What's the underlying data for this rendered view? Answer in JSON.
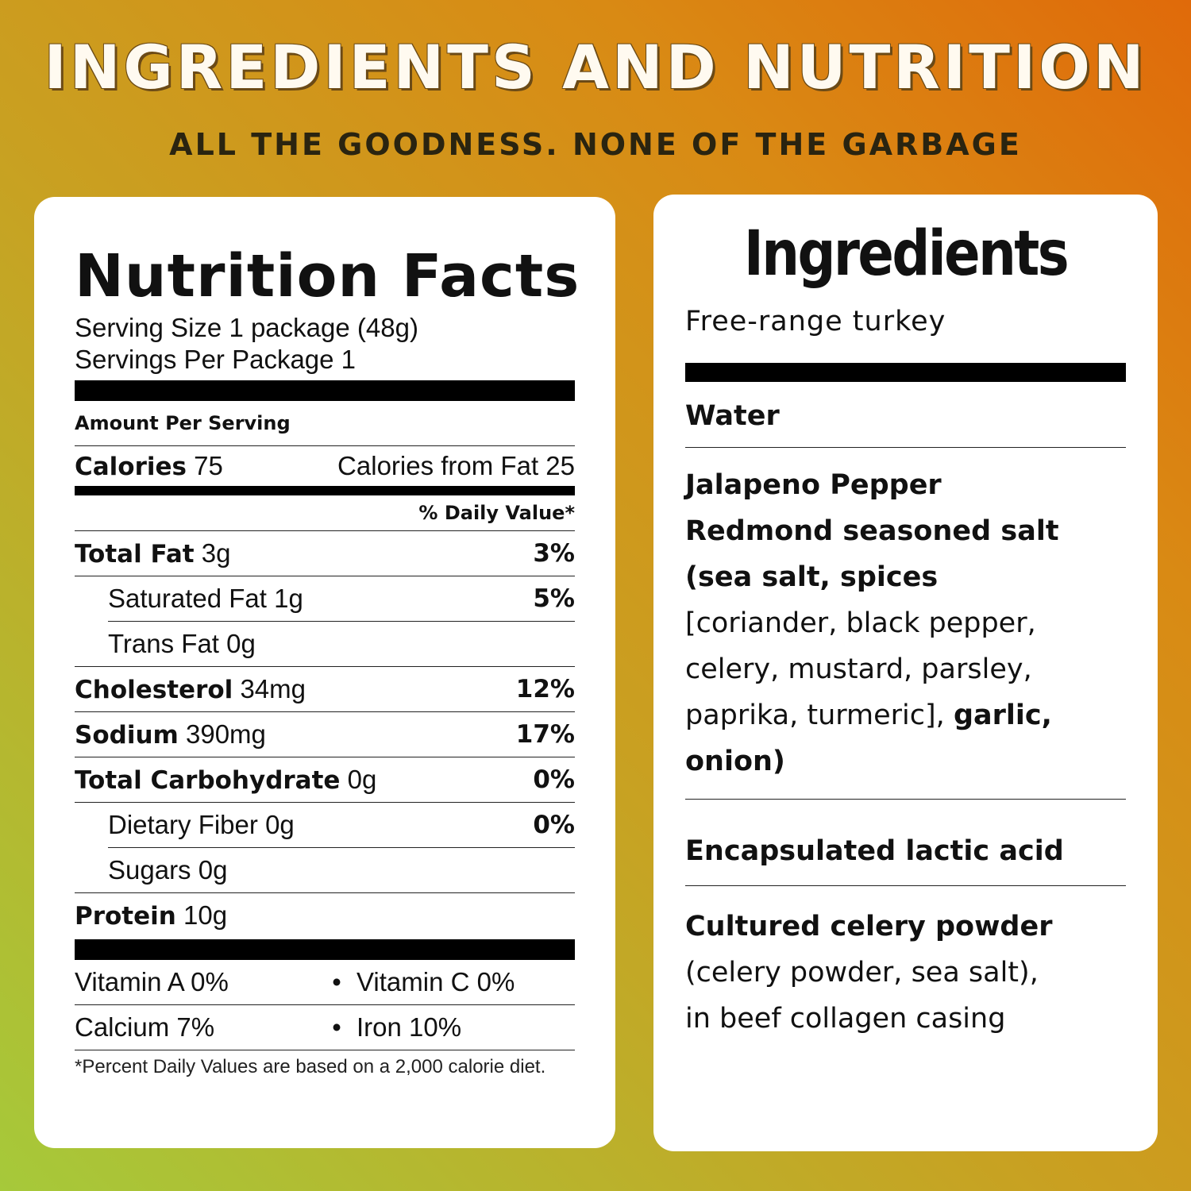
{
  "header": {
    "title": "INGREDIENTS AND NUTRITION",
    "tagline": "ALL THE GOODNESS. NONE OF THE GARBAGE"
  },
  "nutrition": {
    "title": "Nutrition Facts",
    "serving_size_label": "Serving Size",
    "serving_size_value": "1 package (48g)",
    "servings_per_package": "Servings Per Package 1",
    "amount_per_serving": "Amount Per Serving",
    "calories_label": "Calories",
    "calories_value": "75",
    "calories_from_fat_label": "Calories from Fat",
    "calories_from_fat_value": "25",
    "daily_value_header": "% Daily Value*",
    "rows": [
      {
        "label": "Total Fat",
        "amount": "3g",
        "dv": "3%",
        "bold": true
      },
      {
        "label": "Saturated Fat",
        "amount": "1g",
        "dv": "5%",
        "bold": false
      },
      {
        "label": "Trans Fat",
        "amount": "0g",
        "dv": "",
        "bold": false
      },
      {
        "label": "Cholesterol",
        "amount": "34mg",
        "dv": "12%",
        "bold": true
      },
      {
        "label": "Sodium",
        "amount": "390mg",
        "dv": "17%",
        "bold": true
      },
      {
        "label": "Total Carbohydrate",
        "amount": "0g",
        "dv": "0%",
        "bold": true
      },
      {
        "label": "Dietary Fiber",
        "amount": "0g",
        "dv": "0%",
        "bold": false
      },
      {
        "label": "Sugars",
        "amount": "0g",
        "dv": "",
        "bold": false
      },
      {
        "label": "Protein",
        "amount": "10g",
        "dv": "",
        "bold": true
      }
    ],
    "vitamins": [
      {
        "left": "Vitamin A 0%",
        "right": "Vitamin C 0%"
      },
      {
        "left": "Calcium 7%",
        "right": "Iron 10%"
      }
    ],
    "bullet": "•",
    "footnote": "*Percent Daily Values are based on a 2,000 calorie diet."
  },
  "ingredients": {
    "title": "Ingredients",
    "item1": "Free-range turkey",
    "item2": "Water",
    "item3_bold_1": "Jalapeno Pepper",
    "item3_bold_2": "Redmond seasoned salt",
    "item3_bold_3": "(sea salt, spices",
    "item3_plain_1": "[coriander, black pepper,",
    "item3_plain_2": "celery, mustard, parsley,",
    "item3_plain_3": "paprika, turmeric],",
    "item3_bold_4": "garlic,",
    "item3_bold_5": "onion)",
    "item4": "Encapsulated lactic acid",
    "item5_bold": "Cultured celery powder",
    "item5_plain_1": "(celery powder, sea salt),",
    "item5_plain_2": "in beef collagen casing"
  }
}
